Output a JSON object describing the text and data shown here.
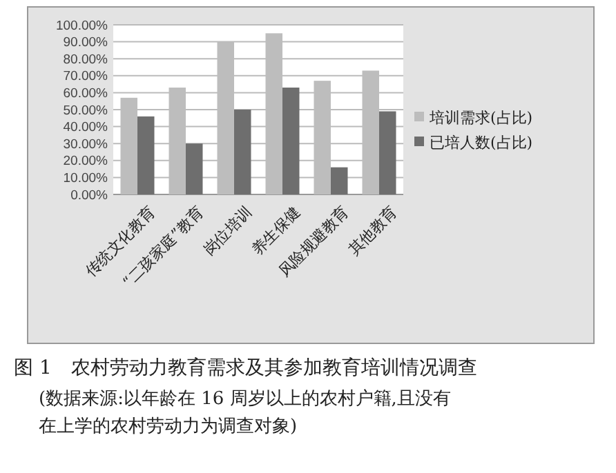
{
  "chart_data": {
    "type": "bar",
    "title": "图 1　农村劳动力教育需求及其参加教育培训情况调查",
    "annotations": [
      "(数据来源:以年龄在 16 周岁以上的农村户籍,且没有在上学的农村劳动力为调查对象)"
    ],
    "categories": [
      "传统文化教育",
      "“二孩家庭”教育",
      "岗位培训",
      "养生保健",
      "风险规避教育",
      "其他教育"
    ],
    "series": [
      {
        "name": "培训需求(占比)",
        "color": "#bdbdbd",
        "values": [
          57,
          63,
          90,
          95,
          67,
          73
        ]
      },
      {
        "name": "已培人数(占比)",
        "color": "#6e6e6e",
        "values": [
          46,
          30,
          50,
          63,
          16,
          49
        ]
      }
    ],
    "ylim": [
      0,
      100
    ],
    "yticks": [
      {
        "value": 0,
        "label": "0.00%"
      },
      {
        "value": 10,
        "label": "10.00%"
      },
      {
        "value": 20,
        "label": "20.00%"
      },
      {
        "value": 30,
        "label": "30.00%"
      },
      {
        "value": 40,
        "label": "40.00%"
      },
      {
        "value": 50,
        "label": "50.00%"
      },
      {
        "value": 60,
        "label": "60.00%"
      },
      {
        "value": 70,
        "label": "70.00%"
      },
      {
        "value": 80,
        "label": "80.00%"
      },
      {
        "value": 90,
        "label": "90.00%"
      },
      {
        "value": 100,
        "label": "100.00%"
      }
    ],
    "grid": "y",
    "legend": "right"
  }
}
